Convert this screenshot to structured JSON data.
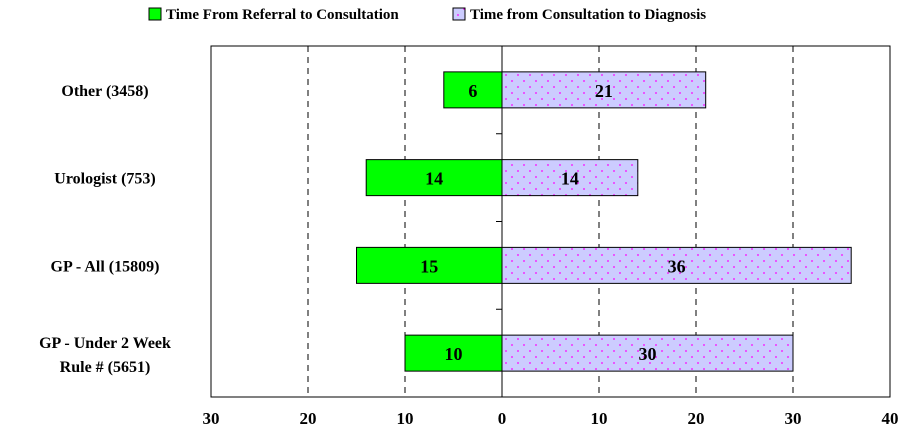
{
  "chart_data": {
    "type": "bar",
    "orientation": "horizontal-diverging",
    "title": "",
    "xlabel": "",
    "ylabel": "",
    "categories": [
      "Other (3458)",
      "Urologist (753)",
      "GP - All (15809)",
      "GP - Under 2 Week Rule # (5651)"
    ],
    "series": [
      {
        "name": "Time From Referral to Consultation",
        "values": [
          6,
          14,
          15,
          10
        ],
        "bar_lengths": [
          6,
          14,
          15,
          10
        ],
        "color": "#00ff00",
        "direction": "left",
        "label_bold": [
          true,
          false,
          true,
          true
        ]
      },
      {
        "name": "Time from Consultation to Diagnosis",
        "values": [
          21,
          14,
          36,
          30
        ],
        "bar_lengths": [
          21,
          14,
          36,
          30
        ],
        "color": "#ccccff",
        "dot_color": "#ff00ff",
        "direction": "right"
      }
    ],
    "xlim": [
      -30,
      40
    ],
    "x_ticks": [
      -30,
      -20,
      -10,
      0,
      10,
      20,
      30,
      40
    ],
    "x_tick_labels": [
      "30",
      "20",
      "10",
      "0",
      "10",
      "20",
      "30",
      "40"
    ],
    "grid": "vertical-dashed",
    "legend_position": "top"
  }
}
